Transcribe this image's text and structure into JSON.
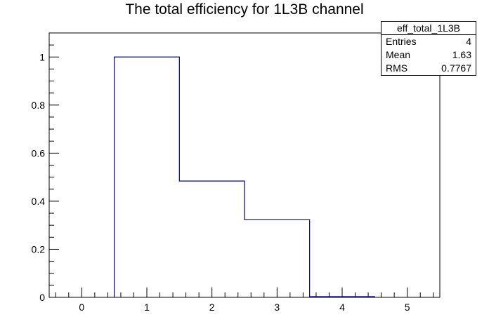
{
  "chart_data": {
    "type": "bar",
    "title": "The total efficiency for 1L3B channel",
    "style": "step-histogram",
    "series_color": "#00008b",
    "bins": [
      {
        "low": 0.5,
        "high": 1.5,
        "value": 1.0
      },
      {
        "low": 1.5,
        "high": 2.5,
        "value": 0.484
      },
      {
        "low": 2.5,
        "high": 3.5,
        "value": 0.323
      },
      {
        "low": 3.5,
        "high": 4.5,
        "value": 0.003
      }
    ],
    "xlim": [
      -0.5,
      5.5
    ],
    "ylim": [
      0,
      1.1
    ],
    "x_ticks": [
      "0",
      "1",
      "2",
      "3",
      "4",
      "5"
    ],
    "y_ticks": [
      "0",
      "0.2",
      "0.4",
      "0.6",
      "0.8",
      "1"
    ],
    "grid": false,
    "stats_box": {
      "name": "eff_total_1L3B",
      "rows": [
        {
          "label": "Entries",
          "value": "4"
        },
        {
          "label": "Mean",
          "value": "1.63"
        },
        {
          "label": "RMS",
          "value": "0.7767"
        }
      ]
    }
  }
}
